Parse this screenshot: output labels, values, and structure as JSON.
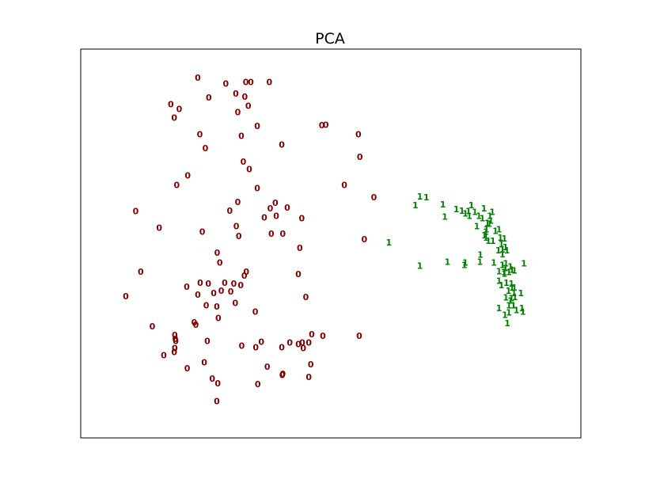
{
  "chart_data": {
    "type": "scatter",
    "title": "PCA",
    "xlabel": "",
    "ylabel": "",
    "xlim": [
      0,
      100
    ],
    "ylim": [
      0,
      100
    ],
    "axis_ticks": "none",
    "grid": false,
    "legend": "none",
    "series": [
      {
        "label": "0",
        "color": "#800000",
        "points": [
          [
            23.4,
            92.7
          ],
          [
            29.0,
            91.1
          ],
          [
            33.0,
            91.5
          ],
          [
            34.0,
            91.5
          ],
          [
            37.7,
            91.5
          ],
          [
            31.0,
            88.6
          ],
          [
            32.8,
            87.8
          ],
          [
            25.6,
            87.6
          ],
          [
            18.0,
            85.8
          ],
          [
            33.5,
            85.4
          ],
          [
            19.7,
            84.6
          ],
          [
            31.4,
            83.8
          ],
          [
            18.7,
            82.4
          ],
          [
            35.3,
            80.2
          ],
          [
            48.2,
            80.4
          ],
          [
            49.0,
            80.6
          ],
          [
            55.5,
            78.1
          ],
          [
            23.8,
            78.1
          ],
          [
            32.1,
            77.7
          ],
          [
            40.2,
            75.5
          ],
          [
            24.9,
            74.5
          ],
          [
            55.8,
            72.3
          ],
          [
            32.5,
            71.1
          ],
          [
            33.7,
            69.1
          ],
          [
            21.4,
            67.5
          ],
          [
            19.2,
            65.1
          ],
          [
            52.7,
            65.1
          ],
          [
            35.3,
            64.3
          ],
          [
            58.6,
            61.9
          ],
          [
            31.4,
            60.7
          ],
          [
            38.9,
            60.5
          ],
          [
            37.9,
            59.1
          ],
          [
            41.3,
            59.3
          ],
          [
            11.0,
            58.3
          ],
          [
            29.8,
            58.5
          ],
          [
            39.1,
            57.1
          ],
          [
            36.7,
            56.7
          ],
          [
            44.2,
            56.5
          ],
          [
            31.1,
            54.5
          ],
          [
            15.7,
            54.1
          ],
          [
            24.3,
            53.1
          ],
          [
            38.1,
            52.5
          ],
          [
            40.4,
            52.5
          ],
          [
            31.6,
            51.9
          ],
          [
            56.7,
            51.1
          ],
          [
            43.8,
            48.9
          ],
          [
            27.3,
            47.7
          ],
          [
            27.8,
            45.1
          ],
          [
            12.0,
            42.8
          ],
          [
            33.1,
            42.8
          ],
          [
            43.5,
            42.2
          ],
          [
            32.7,
            41.8
          ],
          [
            23.9,
            39.9
          ],
          [
            25.5,
            39.7
          ],
          [
            28.8,
            39.9
          ],
          [
            21.2,
            38.9
          ],
          [
            30.6,
            39.7
          ],
          [
            32.0,
            39.3
          ],
          [
            28.1,
            37.9
          ],
          [
            26.6,
            37.3
          ],
          [
            23.4,
            36.9
          ],
          [
            30.0,
            37.7
          ],
          [
            45.0,
            36.3
          ],
          [
            9.0,
            36.5
          ],
          [
            25.1,
            34.1
          ],
          [
            27.2,
            33.8
          ],
          [
            30.9,
            34.7
          ],
          [
            34.9,
            32.5
          ],
          [
            27.5,
            30.9
          ],
          [
            22.7,
            29.7
          ],
          [
            23.0,
            29.1
          ],
          [
            14.3,
            28.7
          ],
          [
            18.8,
            26.5
          ],
          [
            18.9,
            25.5
          ],
          [
            55.7,
            26.3
          ],
          [
            46.2,
            26.7
          ],
          [
            48.4,
            26.3
          ],
          [
            19.0,
            24.9
          ],
          [
            25.3,
            24.9
          ],
          [
            36.1,
            24.7
          ],
          [
            41.8,
            24.5
          ],
          [
            44.3,
            24.5
          ],
          [
            45.6,
            24.5
          ],
          [
            43.5,
            24.1
          ],
          [
            18.8,
            23.1
          ],
          [
            32.2,
            23.7
          ],
          [
            40.2,
            23.3
          ],
          [
            44.5,
            23.1
          ],
          [
            35.0,
            23.3
          ],
          [
            18.7,
            22.1
          ],
          [
            16.6,
            21.3
          ],
          [
            24.7,
            19.5
          ],
          [
            46.0,
            18.9
          ],
          [
            37.3,
            18.3
          ],
          [
            21.3,
            17.9
          ],
          [
            40.3,
            16.2
          ],
          [
            40.4,
            16.5
          ],
          [
            45.6,
            15.7
          ],
          [
            26.3,
            15.3
          ],
          [
            27.4,
            14.1
          ],
          [
            35.4,
            13.9
          ],
          [
            27.2,
            9.5
          ]
        ]
      },
      {
        "label": "1",
        "color": "#008000",
        "points": [
          [
            67.8,
            62.1
          ],
          [
            69.1,
            61.9
          ],
          [
            66.9,
            59.9
          ],
          [
            72.4,
            60.1
          ],
          [
            78.1,
            59.9
          ],
          [
            75.1,
            58.9
          ],
          [
            80.6,
            59.1
          ],
          [
            76.2,
            58.5
          ],
          [
            77.5,
            58.3
          ],
          [
            78.8,
            58.1
          ],
          [
            82.3,
            58.1
          ],
          [
            81.8,
            57.1
          ],
          [
            76.9,
            57.7
          ],
          [
            77.7,
            57.1
          ],
          [
            79.6,
            57.1
          ],
          [
            80.3,
            56.5
          ],
          [
            72.8,
            56.9
          ],
          [
            81.3,
            55.3
          ],
          [
            82.0,
            55.9
          ],
          [
            81.7,
            55.1
          ],
          [
            79.2,
            54.5
          ],
          [
            81.1,
            53.7
          ],
          [
            83.6,
            53.7
          ],
          [
            81.0,
            53.1
          ],
          [
            82.9,
            53.3
          ],
          [
            80.7,
            52.1
          ],
          [
            83.9,
            51.5
          ],
          [
            84.7,
            51.3
          ],
          [
            81.5,
            50.7
          ],
          [
            81.0,
            51.5
          ],
          [
            82.4,
            50.7
          ],
          [
            61.6,
            50.3
          ],
          [
            84.1,
            49.9
          ],
          [
            84.9,
            49.1
          ],
          [
            84.3,
            48.5
          ],
          [
            83.5,
            48.3
          ],
          [
            85.2,
            48.3
          ],
          [
            84.3,
            47.3
          ],
          [
            79.9,
            47.1
          ],
          [
            82.6,
            45.1
          ],
          [
            85.0,
            44.9
          ],
          [
            88.6,
            44.9
          ],
          [
            73.3,
            45.3
          ],
          [
            76.9,
            45.1
          ],
          [
            79.8,
            45.3
          ],
          [
            84.3,
            44.5
          ],
          [
            85.9,
            44.1
          ],
          [
            84.9,
            43.7
          ],
          [
            84.6,
            42.7
          ],
          [
            83.6,
            42.9
          ],
          [
            86.2,
            43.3
          ],
          [
            84.7,
            42.3
          ],
          [
            85.6,
            42.7
          ],
          [
            86.7,
            43.1
          ],
          [
            76.7,
            44.5
          ],
          [
            67.8,
            44.3
          ],
          [
            83.6,
            40.4
          ],
          [
            85.1,
            39.9
          ],
          [
            86.1,
            39.7
          ],
          [
            84.1,
            39.3
          ],
          [
            86.7,
            38.7
          ],
          [
            85.5,
            37.9
          ],
          [
            86.2,
            38.7
          ],
          [
            88.0,
            37.3
          ],
          [
            86.6,
            37.3
          ],
          [
            86.8,
            36.3
          ],
          [
            86.1,
            35.9
          ],
          [
            85.9,
            35.3
          ],
          [
            85.0,
            36.1
          ],
          [
            86.5,
            34.1
          ],
          [
            85.6,
            34.1
          ],
          [
            88.2,
            33.4
          ],
          [
            83.6,
            33.4
          ],
          [
            87.1,
            32.9
          ],
          [
            85.6,
            32.3
          ],
          [
            84.8,
            31.7
          ],
          [
            88.4,
            32.5
          ],
          [
            85.3,
            29.5
          ]
        ]
      }
    ]
  }
}
